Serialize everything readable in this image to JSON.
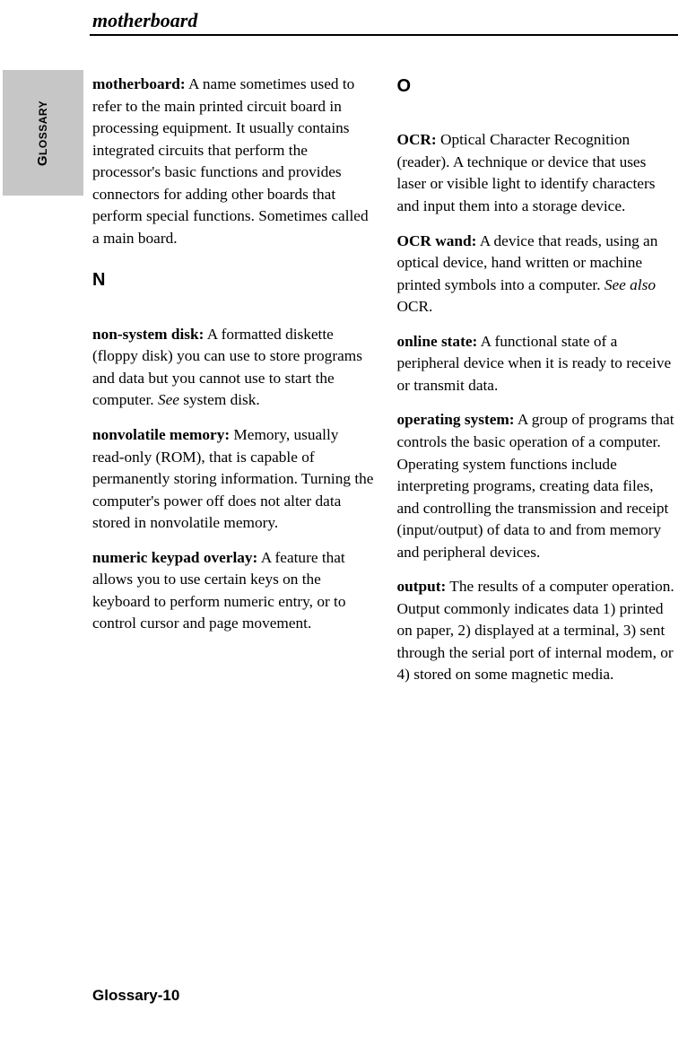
{
  "header": {
    "term": "motherboard"
  },
  "sideTab": {
    "text_big_g": "G",
    "text_rest": "LOSSARY"
  },
  "left": {
    "entries": [
      {
        "term": "motherboard:",
        "body": " A name sometimes used to refer to the main printed circuit board in processing equipment.  It usually contains integrated circuits that perform the processor's basic functions and provides connectors for adding other boards that perform special functions.  Sometimes called a main board."
      }
    ],
    "section_n": "N",
    "entries_n": [
      {
        "term": "non-system disk:",
        "body": "  A formatted diskette (floppy disk) you can use to store programs and data but you cannot use to start the computer.  ",
        "see": "See",
        "tail": " system disk."
      },
      {
        "term": "nonvolatile memory:",
        "body": " Memory, usually read-only (ROM), that is capable of permanently storing information.  Turning the computer's power off does not alter data stored in nonvola­tile memory."
      },
      {
        "term": "numeric keypad overlay:",
        "body": " A feature that allows you to use certain keys on the keyboard to perform numeric entry, or to control cursor and page movement."
      }
    ]
  },
  "right": {
    "section_o": "O",
    "entries_o": [
      {
        "term": "OCR:",
        "body": " Optical Character Recognition (reader).  A technique or device that uses laser or visible light to identify characters and input them into a storage device."
      },
      {
        "term": "OCR wand:",
        "body": "  A device that reads, using an optical device, hand written or machine printed symbols into a computer.  ",
        "see": "See also",
        "tail": " OCR."
      },
      {
        "term": "online state:",
        "body": "  A functional state of a peripheral device when it is ready to receive or transmit data."
      },
      {
        "term": "operating system:",
        "body": "  A group of programs that controls the basic operation of a computer.  Operating system functions include interpreting programs, creating data files, and controlling the transmission and receipt (input/output) of data to and from memory and peripheral devices."
      },
      {
        "term": "output:",
        "body": "  The results of a computer operation.  Output commonly indicates data  1) printed on paper,  2) displayed at a terminal,  3) sent through the serial port of internal modem, or  4) stored on some magnetic media."
      }
    ]
  },
  "footer": {
    "page": "Glossary-10"
  }
}
